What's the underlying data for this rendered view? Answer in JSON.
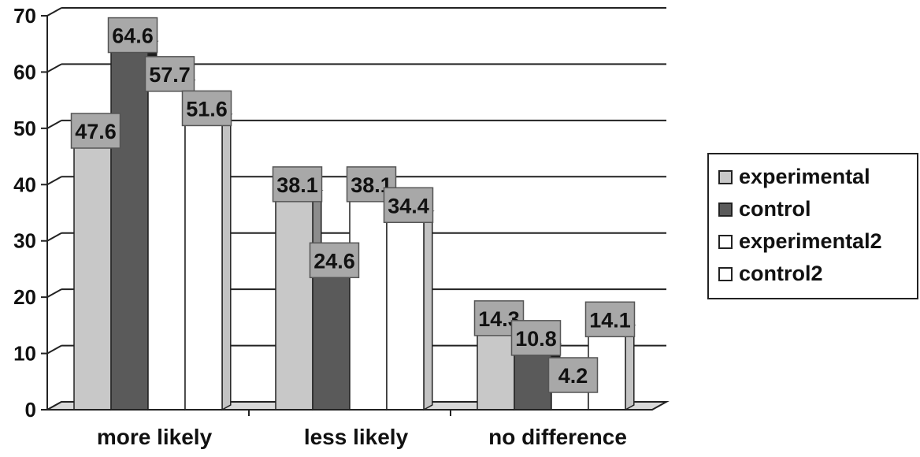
{
  "chart_data": {
    "type": "bar",
    "title": "",
    "xlabel": "",
    "ylabel": "",
    "ylim": [
      0,
      70
    ],
    "yticks": [
      0,
      10,
      20,
      30,
      40,
      50,
      60,
      70
    ],
    "categories": [
      "more likely",
      "less likely",
      "no difference"
    ],
    "series": [
      {
        "name": "experimental",
        "values": [
          47.6,
          38.1,
          14.3
        ],
        "labels": [
          "47.6",
          "38.1",
          "14.3"
        ],
        "color": "#c8c8c8"
      },
      {
        "name": "control",
        "values": [
          64.6,
          24.6,
          10.8
        ],
        "labels": [
          "64.6",
          "24.6",
          "10.8"
        ],
        "color": "#5a5a5a"
      },
      {
        "name": "experimental2",
        "values": [
          57.7,
          38.1,
          4.2
        ],
        "labels": [
          "57.7",
          "38.1",
          "4.2"
        ],
        "color": "#ffffff"
      },
      {
        "name": "control2",
        "values": [
          51.6,
          34.4,
          14.1
        ],
        "labels": [
          "51.6",
          "34.4",
          "14.1"
        ],
        "color": "#ffffff"
      }
    ],
    "grid": true,
    "legend_position": "right",
    "style": "3d-columns"
  }
}
